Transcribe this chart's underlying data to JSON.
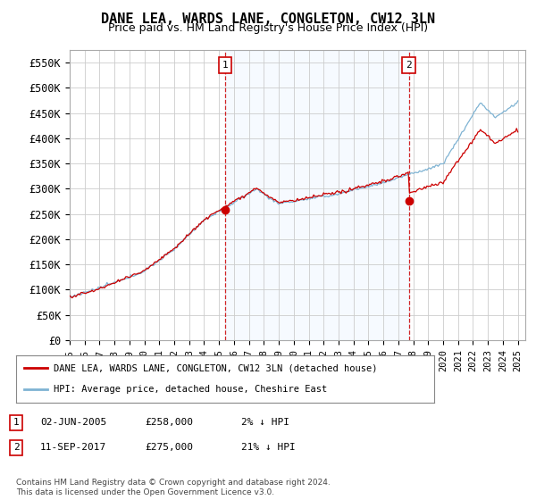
{
  "title": "DANE LEA, WARDS LANE, CONGLETON, CW12 3LN",
  "subtitle": "Price paid vs. HM Land Registry's House Price Index (HPI)",
  "ylabel_ticks": [
    "£0",
    "£50K",
    "£100K",
    "£150K",
    "£200K",
    "£250K",
    "£300K",
    "£350K",
    "£400K",
    "£450K",
    "£500K",
    "£550K"
  ],
  "ytick_values": [
    0,
    50000,
    100000,
    150000,
    200000,
    250000,
    300000,
    350000,
    400000,
    450000,
    500000,
    550000
  ],
  "ylim": [
    0,
    575000
  ],
  "xlim_start": 1995.0,
  "xlim_end": 2025.5,
  "background_color": "#ffffff",
  "grid_color": "#cccccc",
  "hpi_color": "#7fb3d3",
  "price_color": "#cc0000",
  "shade_color": "#ddeeff",
  "marker1_x": 2005.42,
  "marker1_y": 258000,
  "marker2_x": 2017.7,
  "marker2_y": 275000,
  "legend_label_red": "DANE LEA, WARDS LANE, CONGLETON, CW12 3LN (detached house)",
  "legend_label_blue": "HPI: Average price, detached house, Cheshire East",
  "annotation1_label": "1",
  "annotation2_label": "2",
  "footer": "Contains HM Land Registry data © Crown copyright and database right 2024.\nThis data is licensed under the Open Government Licence v3.0.",
  "title_fontsize": 11,
  "subtitle_fontsize": 9
}
